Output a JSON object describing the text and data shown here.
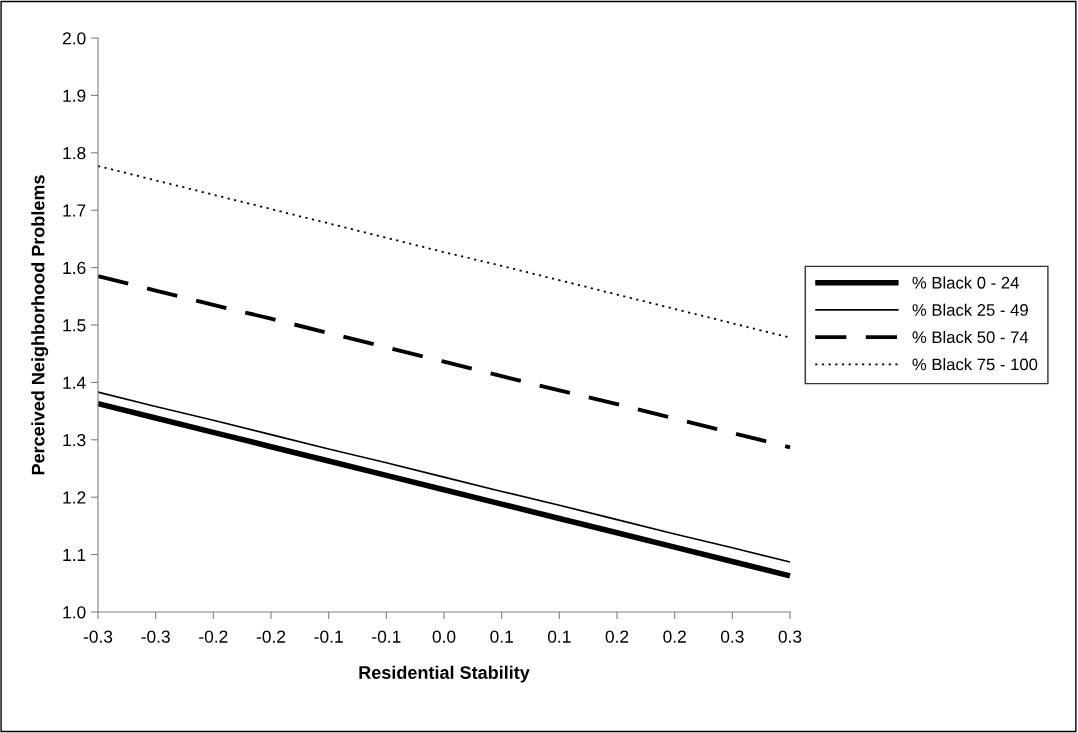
{
  "chart_data": {
    "type": "line",
    "xlabel": "Residential Stability",
    "ylabel": "Perceived Neighborhood Problems",
    "categories": [
      "-0.3",
      "-0.3",
      "-0.2",
      "-0.2",
      "-0.1",
      "-0.1",
      "0.0",
      "0.1",
      "0.1",
      "0.2",
      "0.2",
      "0.3",
      "0.3"
    ],
    "series": [
      {
        "name": "% Black 0 - 24",
        "color": "#000000",
        "line_style": "solid",
        "values": [
          1.363,
          1.338,
          1.313,
          1.288,
          1.263,
          1.238,
          1.213,
          1.188,
          1.163,
          1.138,
          1.113,
          1.088,
          1.063
        ]
      },
      {
        "name": "% Black 25 - 49",
        "color": "#000000",
        "line_style": "solid",
        "values": [
          1.383,
          1.358,
          1.334,
          1.309,
          1.284,
          1.26,
          1.235,
          1.21,
          1.186,
          1.161,
          1.136,
          1.112,
          1.087
        ]
      },
      {
        "name": "% Black 50 - 74",
        "color": "#000000",
        "line_style": "dashed",
        "values": [
          1.585,
          1.56,
          1.535,
          1.511,
          1.486,
          1.461,
          1.436,
          1.411,
          1.386,
          1.362,
          1.337,
          1.312,
          1.287
        ]
      },
      {
        "name": "% Black 75 - 100",
        "color": "#000000",
        "line_style": "dotted",
        "values": [
          1.777,
          1.752,
          1.727,
          1.702,
          1.677,
          1.652,
          1.627,
          1.603,
          1.578,
          1.553,
          1.528,
          1.503,
          1.478
        ]
      }
    ],
    "ylim": [
      1.0,
      2.0
    ],
    "yticks": [
      {
        "value": 1.0,
        "label": "1.0"
      },
      {
        "value": 1.1,
        "label": "1.1"
      },
      {
        "value": 1.2,
        "label": "1.2"
      },
      {
        "value": 1.3,
        "label": "1.3"
      },
      {
        "value": 1.4,
        "label": "1.4"
      },
      {
        "value": 1.5,
        "label": "1.5"
      },
      {
        "value": 1.6,
        "label": "1.6"
      },
      {
        "value": 1.7,
        "label": "1.7"
      },
      {
        "value": 1.8,
        "label": "1.8"
      },
      {
        "value": 1.9,
        "label": "1.9"
      },
      {
        "value": 2.0,
        "label": "2.0"
      }
    ],
    "legend": "right",
    "grid": false,
    "marker": "none"
  }
}
